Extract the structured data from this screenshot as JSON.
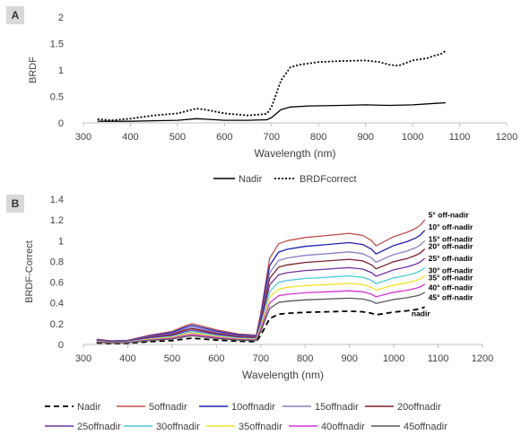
{
  "chart_data": [
    {
      "panel": "A",
      "type": "line",
      "xlabel": "Wavelength (nm)",
      "ylabel": "BRDF",
      "xlim": [
        300,
        1200
      ],
      "ylim": [
        0,
        2
      ],
      "xticks": [
        300,
        400,
        500,
        600,
        700,
        800,
        900,
        1000,
        1100,
        1200
      ],
      "yticks": [
        0,
        0.5,
        1,
        1.5,
        2
      ],
      "ytick_labels": [
        "0",
        "0.5",
        "1",
        "1.5",
        "2"
      ],
      "grid": false,
      "legend_position": "bottom",
      "series": [
        {
          "name": "Nadir",
          "color": "#000000",
          "dash": "solid",
          "x": [
            330,
            400,
            450,
            500,
            540,
            560,
            600,
            650,
            690,
            700,
            720,
            740,
            780,
            850,
            900,
            950,
            1000,
            1050,
            1070
          ],
          "y": [
            0.03,
            0.03,
            0.04,
            0.05,
            0.08,
            0.07,
            0.05,
            0.05,
            0.06,
            0.1,
            0.25,
            0.3,
            0.32,
            0.33,
            0.34,
            0.33,
            0.34,
            0.37,
            0.38
          ]
        },
        {
          "name": "BRDFcorrect",
          "color": "#000000",
          "dash": "dotted",
          "x": [
            330,
            360,
            400,
            450,
            500,
            540,
            560,
            600,
            650,
            690,
            700,
            720,
            740,
            760,
            800,
            850,
            900,
            930,
            950,
            970,
            1000,
            1030,
            1050,
            1060,
            1070
          ],
          "y": [
            0.07,
            0.05,
            0.08,
            0.14,
            0.18,
            0.27,
            0.25,
            0.18,
            0.14,
            0.17,
            0.3,
            0.8,
            1.05,
            1.1,
            1.15,
            1.17,
            1.18,
            1.15,
            1.1,
            1.08,
            1.18,
            1.22,
            1.28,
            1.3,
            1.36
          ]
        }
      ]
    },
    {
      "panel": "B",
      "type": "line",
      "xlabel": "Wavelength (nm)",
      "ylabel": "BRDF-Correct",
      "xlim": [
        300,
        1200
      ],
      "ylim": [
        0,
        1.4
      ],
      "xticks": [
        300,
        400,
        500,
        600,
        700,
        800,
        900,
        1000,
        1100,
        1200
      ],
      "yticks": [
        0,
        0.2,
        0.4,
        0.6,
        0.8,
        1,
        1.2,
        1.4
      ],
      "ytick_labels": [
        "0",
        "0.2",
        "0.4",
        "0.6",
        "0.8",
        "1",
        "1.2",
        "1.4"
      ],
      "grid": false,
      "legend_position": "bottom",
      "base_shape": {
        "x": [
          330,
          360,
          400,
          450,
          500,
          530,
          545,
          560,
          600,
          650,
          690,
          700,
          720,
          740,
          760,
          800,
          850,
          900,
          930,
          950,
          960,
          1000,
          1030,
          1050,
          1060,
          1070
        ],
        "y": [
          0.05,
          0.035,
          0.04,
          0.09,
          0.125,
          0.18,
          0.2,
          0.185,
          0.14,
          0.1,
          0.09,
          0.3,
          0.83,
          0.97,
          1.0,
          1.03,
          1.05,
          1.07,
          1.05,
          1.0,
          0.95,
          1.04,
          1.08,
          1.12,
          1.15,
          1.2
        ]
      },
      "series": [
        {
          "name": "Nadir",
          "color": "#000000",
          "dash": "dashed",
          "level": 0.36
        },
        {
          "name": "5offnadir",
          "color": "#c0504d",
          "dash": "solid",
          "level": 1.2
        },
        {
          "name": "10offnadir",
          "color": "#1f1fb4",
          "dash": "solid",
          "level": 1.1
        },
        {
          "name": "15offnadir",
          "color": "#8e7cc3",
          "dash": "solid",
          "level": 1.0
        },
        {
          "name": "20offnadir",
          "color": "#7a1f2b",
          "dash": "solid",
          "level": 0.92
        },
        {
          "name": "25offnadir",
          "color": "#7030a0",
          "dash": "solid",
          "level": 0.83
        },
        {
          "name": "30offnadir",
          "color": "#4bc9d9",
          "dash": "solid",
          "level": 0.74
        },
        {
          "name": "35offnadir",
          "color": "#f2e224",
          "dash": "solid",
          "level": 0.66
        },
        {
          "name": "40offnadir",
          "color": "#d633d6",
          "dash": "solid",
          "level": 0.58
        },
        {
          "name": "45offnadir",
          "color": "#595959",
          "dash": "solid",
          "level": 0.5
        }
      ],
      "annotations": [
        {
          "text": "5° off-nadir",
          "y": 1.25
        },
        {
          "text": "10° off-nadir",
          "y": 1.13
        },
        {
          "text": "15° off-nadir",
          "y": 1.015
        },
        {
          "text": "20° off-nadir",
          "y": 0.945
        },
        {
          "text": "25° off-nadir",
          "y": 0.83
        },
        {
          "text": "30° off-nadir",
          "y": 0.715
        },
        {
          "text": "35° off-nadir",
          "y": 0.645
        },
        {
          "text": "40° off-nadir",
          "y": 0.55
        },
        {
          "text": "45° off-nadir",
          "y": 0.455
        },
        {
          "text": "nadir",
          "y": 0.3
        }
      ]
    }
  ]
}
